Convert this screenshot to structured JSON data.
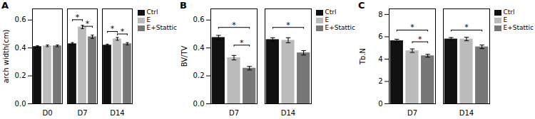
{
  "chart_data": [
    {
      "type": "bar",
      "title": "A",
      "ylabel": "arch width(cm)",
      "categories": [
        "D0",
        "D7",
        "D14"
      ],
      "series": [
        {
          "name": "Ctrl",
          "color": "#111111",
          "values": [
            0.41,
            0.43,
            0.42
          ],
          "errors": [
            0.006,
            0.008,
            0.007
          ]
        },
        {
          "name": "E",
          "color": "#bbbbbb",
          "values": [
            0.415,
            0.55,
            0.465
          ],
          "errors": [
            0.006,
            0.012,
            0.01
          ]
        },
        {
          "name": "E+Stattic",
          "color": "#777777",
          "values": [
            0.415,
            0.48,
            0.43
          ],
          "errors": [
            0.006,
            0.012,
            0.008
          ]
        }
      ],
      "ylim": [
        0.0,
        0.68
      ],
      "yticks": [
        {
          "value": 0.0,
          "label": "0.0"
        },
        0.2,
        0.4,
        0.6
      ],
      "legend": "upper right",
      "annotations": [
        {
          "text": "*",
          "category": "D7",
          "between": [
            "Ctrl",
            "E"
          ],
          "y": 0.59,
          "height": 0.012
        },
        {
          "text": "*",
          "category": "D7",
          "between": [
            "E",
            "E+Stattic"
          ],
          "y": 0.543,
          "height": 0.012
        },
        {
          "text": "*",
          "category": "D14",
          "between": [
            "Ctrl",
            "E"
          ],
          "y": 0.506,
          "height": 0.012
        },
        {
          "text": "*",
          "category": "D14",
          "between": [
            "E",
            "E+Stattic"
          ],
          "y": 0.488,
          "height": 0.012
        }
      ]
    },
    {
      "type": "bar",
      "title": "B",
      "ylabel": "BV/TV",
      "categories": [
        "D7",
        "D14"
      ],
      "series": [
        {
          "name": "Ctrl",
          "color": "#111111",
          "values": [
            0.475,
            0.46
          ],
          "errors": [
            0.015,
            0.013
          ]
        },
        {
          "name": "E",
          "color": "#bbbbbb",
          "values": [
            0.33,
            0.455
          ],
          "errors": [
            0.016,
            0.018
          ]
        },
        {
          "name": "E+Stattic",
          "color": "#777777",
          "values": [
            0.255,
            0.365
          ],
          "errors": [
            0.013,
            0.016
          ]
        }
      ],
      "ylim": [
        0.0,
        0.68
      ],
      "yticks": [
        {
          "value": 0.0,
          "label": "0.0"
        },
        0.2,
        0.4,
        0.6
      ],
      "legend": "upper right",
      "annotations": [
        {
          "text": "*",
          "category": "D7",
          "between": [
            "Ctrl",
            "E+Stattic"
          ],
          "y": 0.535,
          "height": 0.012
        },
        {
          "text": "*",
          "category": "D7",
          "between": [
            "E",
            "E+Stattic"
          ],
          "y": 0.408,
          "height": 0.012
        },
        {
          "text": "*",
          "category": "D14",
          "between": [
            "Ctrl",
            "E+Stattic"
          ],
          "y": 0.535,
          "height": 0.012
        }
      ]
    },
    {
      "type": "bar",
      "title": "C",
      "ylabel": "Tb.N",
      "categories": [
        "D7",
        "D14"
      ],
      "series": [
        {
          "name": "Ctrl",
          "color": "#111111",
          "values": [
            5.65,
            5.8
          ],
          "errors": [
            0.13,
            0.13
          ]
        },
        {
          "name": "E",
          "color": "#bbbbbb",
          "values": [
            4.75,
            5.8
          ],
          "errors": [
            0.16,
            0.16
          ]
        },
        {
          "name": "E+Stattic",
          "color": "#777777",
          "values": [
            4.3,
            5.1
          ],
          "errors": [
            0.13,
            0.16
          ]
        }
      ],
      "ylim": [
        0,
        8.5
      ],
      "yticks": [
        0,
        2,
        4,
        6,
        8
      ],
      "legend": "upper right",
      "annotations": [
        {
          "text": "*",
          "category": "D7",
          "between": [
            "Ctrl",
            "E+Stattic"
          ],
          "y": 6.45,
          "height": 0.15
        },
        {
          "text": "*",
          "category": "D7",
          "between": [
            "E",
            "E+Stattic"
          ],
          "y": 5.4,
          "height": 0.15
        },
        {
          "text": "*",
          "category": "D14",
          "between": [
            "Ctrl",
            "E+Stattic"
          ],
          "y": 6.45,
          "height": 0.15
        }
      ]
    }
  ]
}
